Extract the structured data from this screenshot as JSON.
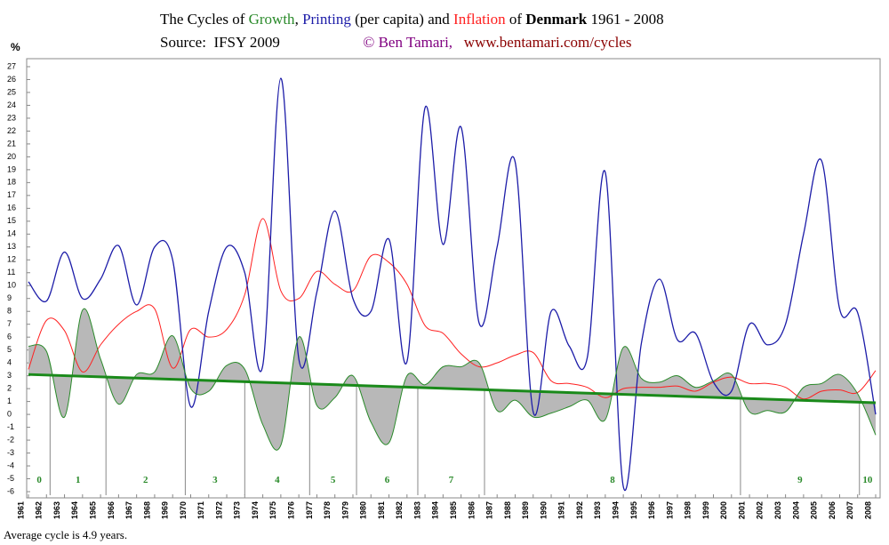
{
  "chart_data": {
    "type": "line",
    "title_parts": [
      "The Cycles of",
      ",",
      "(per capita) and",
      "of",
      "Denmark",
      "1961 - 2008"
    ],
    "source_label": "Source:",
    "source": "IFSY 2009",
    "author": "© Ben Tamari,",
    "url": "www.bentamari.com/cycles",
    "y_label": "%",
    "footnote": "Average cycle is 4.9 years.",
    "x": [
      1961,
      1962,
      1963,
      1964,
      1965,
      1966,
      1967,
      1968,
      1969,
      1970,
      1971,
      1972,
      1973,
      1974,
      1975,
      1976,
      1977,
      1978,
      1979,
      1980,
      1981,
      1982,
      1983,
      1984,
      1985,
      1986,
      1987,
      1988,
      1989,
      1990,
      1991,
      1992,
      1993,
      1994,
      1995,
      1996,
      1997,
      1998,
      1999,
      2000,
      2001,
      2002,
      2003,
      2004,
      2005,
      2006,
      2007,
      2008
    ],
    "xlim": [
      1961,
      2008
    ],
    "ylim": [
      -6,
      27
    ],
    "yticks": [
      -6,
      -5,
      -4,
      -3,
      -2,
      -1,
      0,
      1,
      2,
      3,
      4,
      5,
      6,
      7,
      8,
      9,
      10,
      11,
      12,
      13,
      14,
      15,
      16,
      17,
      18,
      19,
      20,
      21,
      22,
      23,
      24,
      25,
      26,
      27
    ],
    "series": [
      {
        "name": "Growth",
        "color": "#2a8a2a",
        "values": [
          5.3,
          4.9,
          -0.2,
          8.1,
          4.3,
          0.8,
          3.1,
          3.3,
          6.1,
          2.0,
          1.8,
          3.8,
          3.5,
          -0.8,
          -2.4,
          6.0,
          0.7,
          1.3,
          3.0,
          -0.6,
          -2.2,
          3.0,
          2.3,
          3.7,
          3.7,
          4.0,
          0.3,
          1.1,
          -0.2,
          0.1,
          0.6,
          1.1,
          -0.4,
          5.2,
          2.8,
          2.5,
          3.0,
          2.1,
          2.6,
          3.1,
          0.2,
          0.3,
          0.2,
          2.1,
          2.4,
          3.1,
          1.6,
          -1.6
        ]
      },
      {
        "name": "Printing",
        "color": "#1c1ca8",
        "values": [
          10.3,
          8.8,
          12.6,
          9.0,
          10.5,
          13.1,
          8.5,
          13.0,
          12.0,
          0.6,
          8.0,
          13.0,
          11.0,
          3.8,
          26.1,
          4.3,
          9.5,
          15.8,
          9.0,
          8.0,
          13.6,
          4.1,
          23.8,
          13.2,
          22.3,
          7.1,
          13.0,
          19.6,
          0.2,
          8.0,
          5.3,
          4.4,
          18.8,
          -5.6,
          5.5,
          10.5,
          5.8,
          6.3,
          2.5,
          1.8,
          7.0,
          5.4,
          7.0,
          14.0,
          19.7,
          8.2,
          7.9,
          0.0
        ]
      },
      {
        "name": "Inflation",
        "color": "#ff2020",
        "values": [
          3.5,
          7.3,
          6.5,
          3.3,
          5.4,
          7.0,
          8.0,
          8.2,
          3.6,
          6.6,
          6.0,
          6.6,
          9.3,
          15.2,
          9.6,
          9.0,
          11.1,
          10.1,
          9.6,
          12.3,
          11.8,
          10.1,
          6.9,
          6.3,
          4.7,
          3.7,
          4.0,
          4.6,
          4.8,
          2.6,
          2.4,
          2.1,
          1.3,
          2.0,
          2.1,
          2.1,
          2.2,
          1.8,
          2.5,
          2.9,
          2.4,
          2.4,
          2.1,
          1.2,
          1.8,
          1.9,
          1.7,
          3.4
        ]
      }
    ],
    "trend": {
      "color": "#1a8a1a",
      "x": [
        1961,
        2008
      ],
      "values": [
        3.1,
        0.9
      ]
    },
    "fill_color": "#b8b8b8",
    "cycle_boundaries": [
      1962.2,
      1965.3,
      1969.7,
      1973.0,
      1976.6,
      1979.2,
      1982.6,
      1986.3,
      2000.5,
      2007.1
    ],
    "cycle_labels": [
      "0",
      "1",
      "2",
      "3",
      "4",
      "5",
      "6",
      "7",
      "8",
      "9",
      "10"
    ],
    "source_color": "#800080",
    "url_color": "#8b0000"
  }
}
